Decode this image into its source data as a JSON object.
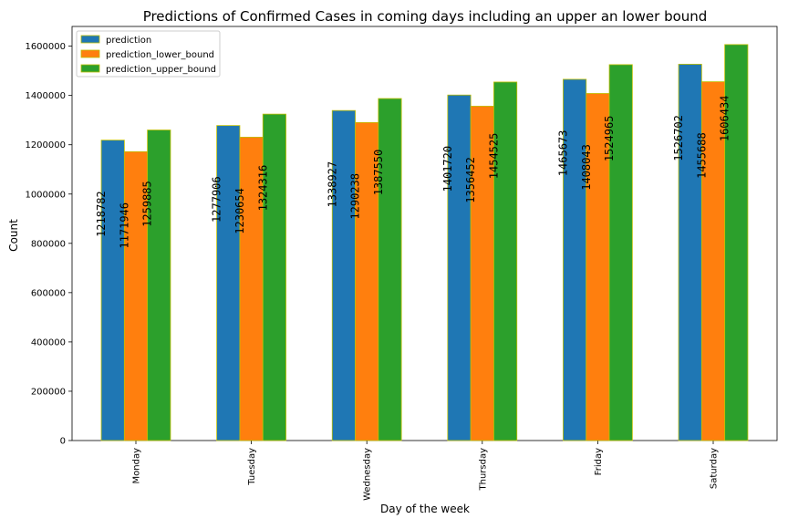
{
  "chart_data": {
    "type": "bar",
    "title": "Predictions of Confirmed Cases in coming days including an upper an lower bound",
    "xlabel": "Day of the week",
    "ylabel": "Count",
    "ylim": [
      0,
      1680000
    ],
    "yticks": [
      0,
      200000,
      400000,
      600000,
      800000,
      1000000,
      1200000,
      1400000,
      1600000
    ],
    "grid": false,
    "legend_position": "top-left",
    "categories": [
      "Monday",
      "Tuesday",
      "Wednesday",
      "Thursday",
      "Friday",
      "Saturday"
    ],
    "series": [
      {
        "name": "prediction",
        "color": "#1f77b4",
        "values": [
          1218782,
          1277906,
          1338927,
          1401720,
          1465673,
          1526702
        ]
      },
      {
        "name": "prediction_lower_bound",
        "color": "#ff7f0e",
        "values": [
          1171946,
          1230654,
          1290238,
          1356452,
          1408043,
          1455688
        ]
      },
      {
        "name": "prediction_upper_bound",
        "color": "#2ca02c",
        "values": [
          1259885,
          1324316,
          1387550,
          1454525,
          1524965,
          1606434
        ]
      }
    ],
    "bar_edge_color": "#bfbf00"
  }
}
